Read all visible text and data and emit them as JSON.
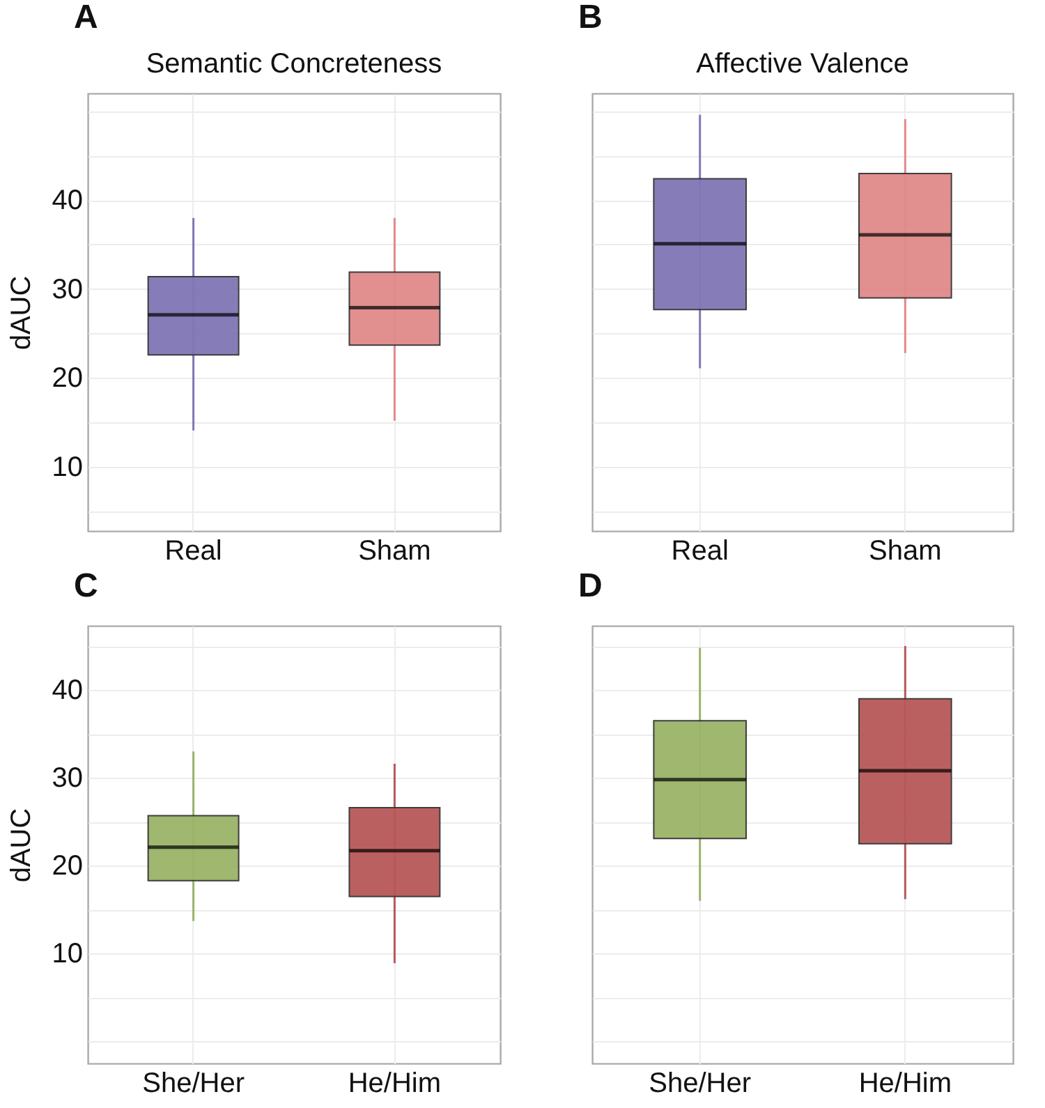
{
  "chart_data": [
    {
      "type": "box",
      "title": "Semantic Concreteness",
      "annotations": [
        "A"
      ],
      "ylabel": "dAUC",
      "categories": [
        "Real",
        "Sham"
      ],
      "colors": [
        "#8077b5",
        "#e08a8a"
      ],
      "boxes": [
        {
          "low": 14.1,
          "q1": 22.6,
          "median": 27.1,
          "q3": 31.4,
          "high": 38.0
        },
        {
          "low": 15.2,
          "q1": 23.7,
          "median": 27.9,
          "q3": 31.9,
          "high": 38.0
        }
      ],
      "ylim": [
        2.8,
        52
      ],
      "yticks": [
        {
          "value": 5,
          "label": null
        },
        10,
        {
          "value": 15,
          "label": null
        },
        20,
        {
          "value": 25,
          "label": null
        },
        30,
        {
          "value": 35,
          "label": null
        },
        40,
        {
          "value": 45,
          "label": null
        },
        {
          "value": 50,
          "label": null
        }
      ],
      "grid": true
    },
    {
      "type": "box",
      "title": "Affective Valence",
      "annotations": [
        "B"
      ],
      "categories": [
        "Real",
        "Sham"
      ],
      "colors": [
        "#8077b5",
        "#e08a8a"
      ],
      "boxes": [
        {
          "low": 21.1,
          "q1": 27.7,
          "median": 35.1,
          "q3": 42.4,
          "high": 49.6
        },
        {
          "low": 22.8,
          "q1": 29.0,
          "median": 36.1,
          "q3": 43.0,
          "high": 49.1
        }
      ],
      "ylim": [
        2.8,
        52
      ],
      "yticks": [
        {
          "value": 5,
          "label": null
        },
        10,
        {
          "value": 15,
          "label": null
        },
        20,
        {
          "value": 25,
          "label": null
        },
        30,
        {
          "value": 35,
          "label": null
        },
        40,
        {
          "value": 45,
          "label": null
        },
        {
          "value": 50,
          "label": null
        }
      ],
      "grid": true,
      "tick_labels": "x"
    },
    {
      "type": "box",
      "annotations": [
        "C"
      ],
      "ylabel": "dAUC",
      "categories": [
        "She/Her",
        "He/Him"
      ],
      "colors": [
        "#9ab468",
        "#b85858"
      ],
      "boxes": [
        {
          "low": 13.7,
          "q1": 18.3,
          "median": 22.1,
          "q3": 25.7,
          "high": 33.0
        },
        {
          "low": 8.9,
          "q1": 16.5,
          "median": 21.7,
          "q3": 26.6,
          "high": 31.6
        }
      ],
      "ylim": [
        -2.5,
        47.3
      ],
      "yticks": [
        {
          "value": 0,
          "label": null
        },
        {
          "value": 5,
          "label": null
        },
        10,
        {
          "value": 15,
          "label": null
        },
        20,
        {
          "value": 25,
          "label": null
        },
        30,
        {
          "value": 35,
          "label": null
        },
        40,
        {
          "value": 45,
          "label": null
        }
      ],
      "grid": true
    },
    {
      "type": "box",
      "annotations": [
        "D"
      ],
      "categories": [
        "She/Her",
        "He/Him"
      ],
      "colors": [
        "#9ab468",
        "#b85858"
      ],
      "boxes": [
        {
          "low": 16.0,
          "q1": 23.1,
          "median": 29.8,
          "q3": 36.5,
          "high": 44.8
        },
        {
          "low": 16.2,
          "q1": 22.5,
          "median": 30.8,
          "q3": 39.0,
          "high": 45.0
        }
      ],
      "ylim": [
        -2.5,
        47.3
      ],
      "yticks": [
        {
          "value": 0,
          "label": null
        },
        {
          "value": 5,
          "label": null
        },
        10,
        {
          "value": 15,
          "label": null
        },
        20,
        {
          "value": 25,
          "label": null
        },
        30,
        {
          "value": 35,
          "label": null
        },
        40,
        {
          "value": 45,
          "label": null
        }
      ],
      "grid": true,
      "tick_labels": "x"
    }
  ]
}
